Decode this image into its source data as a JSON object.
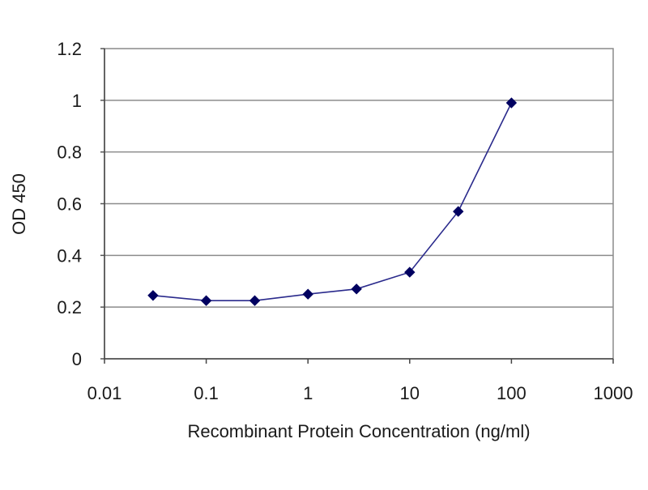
{
  "chart_data": {
    "type": "line",
    "title": "",
    "xlabel": "Recombinant Protein Concentration (ng/ml)",
    "ylabel": "OD 450",
    "x_scale": "log",
    "xlim": [
      0.01,
      1000
    ],
    "ylim": [
      0,
      1.2
    ],
    "x_ticks": [
      0.01,
      0.1,
      1,
      10,
      100,
      1000
    ],
    "x_tick_labels": [
      "0.01",
      "0.1",
      "1",
      "10",
      "100",
      "1000"
    ],
    "y_ticks": [
      0,
      0.2,
      0.4,
      0.6,
      0.8,
      1,
      1.2
    ],
    "y_tick_labels": [
      "0",
      "0.2",
      "0.4",
      "0.6",
      "0.8",
      "1",
      "1.2"
    ],
    "grid": "horizontal",
    "legend": "none",
    "series": [
      {
        "x": [
          0.03,
          0.1,
          0.3,
          1,
          3,
          10,
          30,
          100
        ],
        "y": [
          0.245,
          0.225,
          0.225,
          0.25,
          0.27,
          0.335,
          0.57,
          0.99
        ],
        "color": "#2a2a8c",
        "marker": "diamond",
        "marker_color": "#000060"
      }
    ]
  }
}
